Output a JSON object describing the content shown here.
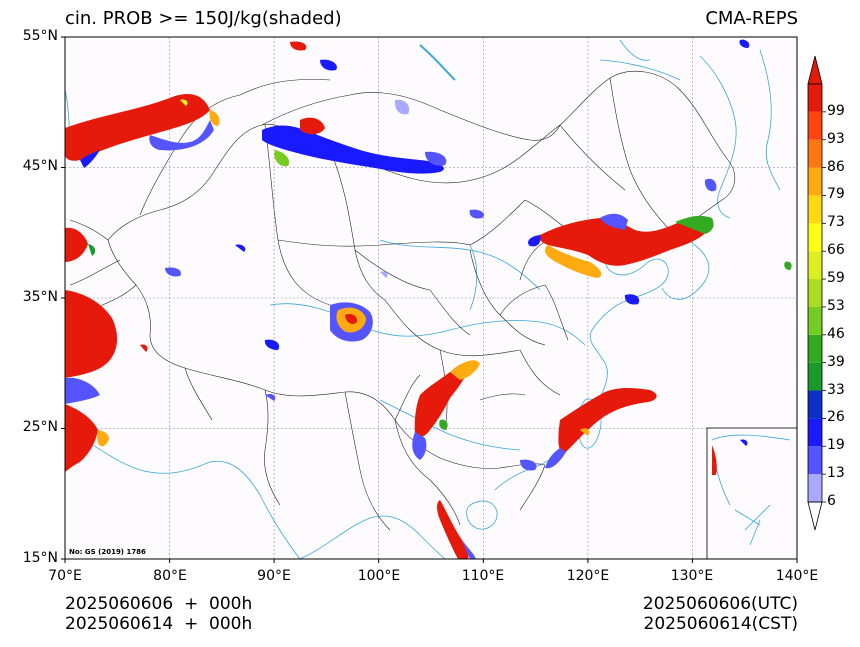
{
  "title_left": "cin. PROB >= 150J/kg(shaded)",
  "title_right": "CMA-REPS",
  "footer": {
    "left_line1": "2025060606  +  000h",
    "left_line2": "2025060614  +  000h",
    "right_line1": "2025060606(UTC)",
    "right_line2": "2025060614(CST)"
  },
  "map_note": "No: GS (2019) 1786",
  "lat_labels": [
    "55°N",
    "45°N",
    "35°N",
    "25°N",
    "15°N"
  ],
  "lon_labels": [
    "70°E",
    "80°E",
    "90°E",
    "100°E",
    "110°E",
    "120°E",
    "130°E",
    "140°E"
  ],
  "colorbar": {
    "labels": [
      "6",
      "13",
      "19",
      "26",
      "33",
      "39",
      "46",
      "53",
      "59",
      "66",
      "73",
      "79",
      "86",
      "93",
      "99"
    ],
    "colors": [
      "#a9a9ff",
      "#5555ff",
      "#1a1aff",
      "#0a30c8",
      "#1a9a2a",
      "#33aa22",
      "#77cc22",
      "#aadd22",
      "#ddee22",
      "#ffff11",
      "#ffd811",
      "#ffaa11",
      "#ff7711",
      "#ff4411",
      "#e61a0a"
    ],
    "under_color": "#ffffff",
    "over_color": "#e61a0a"
  },
  "colors": {
    "coast": "#3ba8d8",
    "border": "#222222",
    "grid": "#8888aa"
  }
}
